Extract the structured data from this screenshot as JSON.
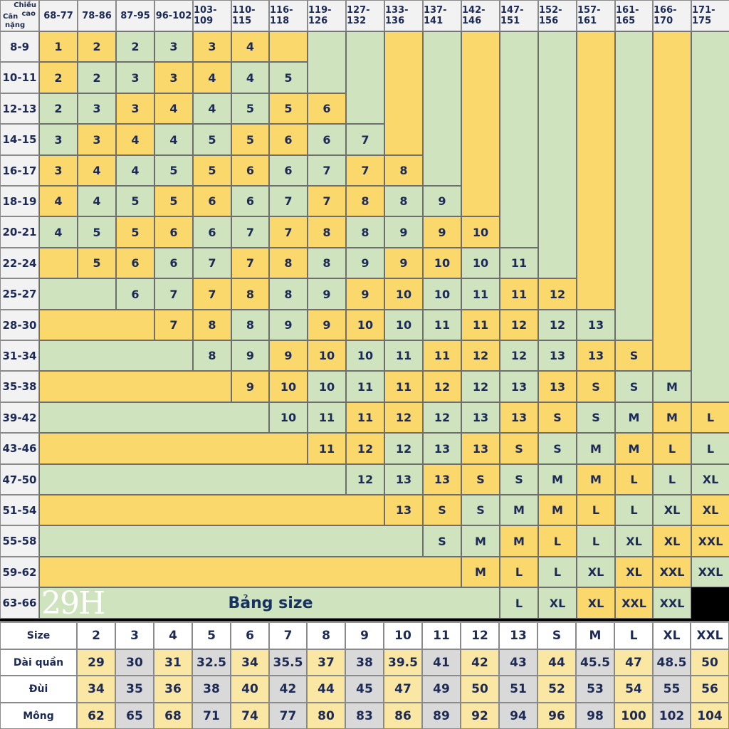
{
  "chart_data": {
    "type": "table",
    "title": "Bảng size",
    "logo": "29H",
    "corner_labels": {
      "column_axis": "Chiều cao",
      "row_axis": "Cân nặng"
    },
    "height_ranges": [
      "68-77",
      "78-86",
      "87-95",
      "96-102",
      "103-109",
      "110-115",
      "116-118",
      "119-126",
      "127-132",
      "133-136",
      "137-141",
      "142-146",
      "147-151",
      "152-156",
      "157-161",
      "161-165",
      "166-170",
      "171-175"
    ],
    "weight_ranges": [
      "8-9",
      "10-11",
      "12-13",
      "14-15",
      "16-17",
      "18-19",
      "20-21",
      "22-24",
      "25-27",
      "28-30",
      "31-34",
      "35-38",
      "39-42",
      "43-46",
      "47-50",
      "51-54",
      "55-58",
      "59-62",
      "63-66"
    ],
    "size_grid": [
      [
        "1",
        "2",
        "2",
        "3",
        "3",
        "4",
        "",
        "",
        "",
        "",
        "",
        "",
        "",
        "",
        "",
        "",
        "",
        ""
      ],
      [
        "2",
        "2",
        "3",
        "3",
        "4",
        "4",
        "5",
        "",
        "",
        "",
        "",
        "",
        "",
        "",
        "",
        "",
        "",
        ""
      ],
      [
        "2",
        "3",
        "3",
        "4",
        "4",
        "5",
        "5",
        "6",
        "",
        "",
        "",
        "",
        "",
        "",
        "",
        "",
        "",
        ""
      ],
      [
        "3",
        "3",
        "4",
        "4",
        "5",
        "5",
        "6",
        "6",
        "7",
        "",
        "",
        "",
        "",
        "",
        "",
        "",
        "",
        ""
      ],
      [
        "3",
        "4",
        "4",
        "5",
        "5",
        "6",
        "6",
        "7",
        "7",
        "8",
        "",
        "",
        "",
        "",
        "",
        "",
        "",
        ""
      ],
      [
        "4",
        "4",
        "5",
        "5",
        "6",
        "6",
        "7",
        "7",
        "8",
        "8",
        "9",
        "",
        "",
        "",
        "",
        "",
        "",
        ""
      ],
      [
        "4",
        "5",
        "5",
        "6",
        "6",
        "7",
        "7",
        "8",
        "8",
        "9",
        "9",
        "10",
        "",
        "",
        "",
        "",
        "",
        ""
      ],
      [
        "",
        "5",
        "6",
        "6",
        "7",
        "7",
        "8",
        "8",
        "9",
        "9",
        "10",
        "10",
        "11",
        "",
        "",
        "",
        "",
        ""
      ],
      [
        "",
        "",
        "6",
        "7",
        "7",
        "8",
        "8",
        "9",
        "9",
        "10",
        "10",
        "11",
        "11",
        "12",
        "",
        "",
        "",
        ""
      ],
      [
        "",
        "",
        "",
        "7",
        "8",
        "8",
        "9",
        "9",
        "10",
        "10",
        "11",
        "11",
        "12",
        "12",
        "13",
        "",
        "",
        ""
      ],
      [
        "",
        "",
        "",
        "",
        "8",
        "9",
        "9",
        "10",
        "10",
        "11",
        "11",
        "12",
        "12",
        "13",
        "13",
        "S",
        "",
        ""
      ],
      [
        "",
        "",
        "",
        "",
        "",
        "9",
        "10",
        "10",
        "11",
        "11",
        "12",
        "12",
        "13",
        "13",
        "S",
        "S",
        "M",
        ""
      ],
      [
        "",
        "",
        "",
        "",
        "",
        "",
        "10",
        "11",
        "11",
        "12",
        "12",
        "13",
        "13",
        "S",
        "S",
        "M",
        "M",
        "L"
      ],
      [
        "",
        "",
        "",
        "",
        "",
        "",
        "",
        "11",
        "12",
        "12",
        "13",
        "13",
        "S",
        "S",
        "M",
        "M",
        "L",
        "L"
      ],
      [
        "",
        "",
        "",
        "",
        "",
        "",
        "",
        "",
        "12",
        "13",
        "13",
        "S",
        "S",
        "M",
        "M",
        "L",
        "L",
        "XL"
      ],
      [
        "",
        "",
        "",
        "",
        "",
        "",
        "",
        "",
        "",
        "13",
        "S",
        "S",
        "M",
        "M",
        "L",
        "L",
        "XL",
        "XL"
      ],
      [
        "",
        "",
        "",
        "",
        "",
        "",
        "",
        "",
        "",
        "",
        "S",
        "M",
        "M",
        "L",
        "L",
        "XL",
        "XL",
        "XXL"
      ],
      [
        "",
        "",
        "",
        "",
        "",
        "",
        "",
        "",
        "",
        "",
        "",
        "M",
        "L",
        "L",
        "XL",
        "XL",
        "XXL",
        "XXL"
      ],
      [
        "",
        "",
        "",
        "",
        "",
        "",
        "",
        "",
        "",
        "",
        "",
        "",
        "L",
        "XL",
        "XL",
        "XXL",
        "XXL",
        ""
      ]
    ],
    "measurements": {
      "header": "Size",
      "sizes": [
        "2",
        "3",
        "4",
        "5",
        "6",
        "7",
        "8",
        "9",
        "10",
        "11",
        "12",
        "13",
        "S",
        "M",
        "L",
        "XL",
        "XXL"
      ],
      "rows": [
        {
          "label": "Dài quần",
          "values": [
            "29",
            "30",
            "31",
            "32.5",
            "34",
            "35.5",
            "37",
            "38",
            "39.5",
            "41",
            "42",
            "43",
            "44",
            "45.5",
            "47",
            "48.5",
            "50"
          ]
        },
        {
          "label": "Đùi",
          "values": [
            "34",
            "35",
            "36",
            "38",
            "40",
            "42",
            "44",
            "45",
            "47",
            "49",
            "50",
            "51",
            "52",
            "53",
            "54",
            "55",
            "56"
          ]
        },
        {
          "label": "Mông",
          "values": [
            "62",
            "65",
            "68",
            "71",
            "74",
            "77",
            "80",
            "83",
            "86",
            "89",
            "92",
            "94",
            "96",
            "98",
            "100",
            "102",
            "104"
          ]
        }
      ]
    },
    "colors": {
      "yellow": "#fbd86b",
      "green": "#cfe3bf",
      "header_gray": "#f2f2f2",
      "text": "#1c2a55"
    }
  }
}
